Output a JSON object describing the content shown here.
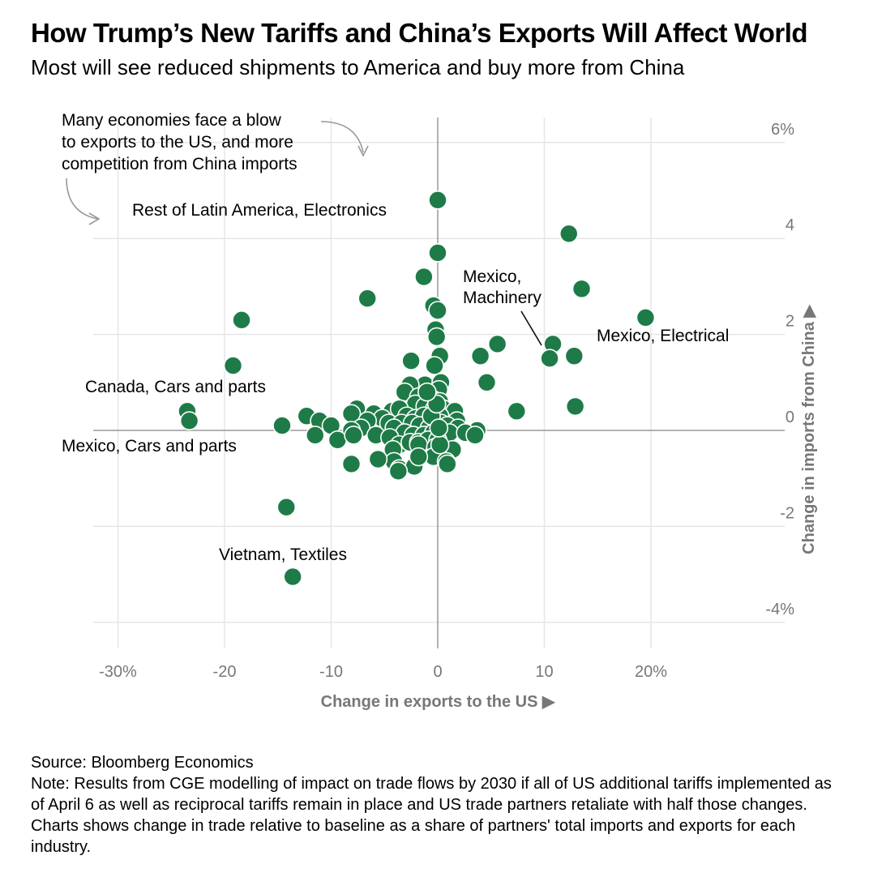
{
  "title": "How Trump’s New Tariffs and China’s Exports Will Affect World",
  "subtitle": "Most will see reduced shipments to America and buy more from China",
  "footer": {
    "source": "Source: Bloomberg Economics",
    "note": "Note: Results from CGE modelling of impact on trade flows by 2030 if all of US additional tariffs implemented as of April 6 as well as reciprocal tariffs remain in place and US trade partners retaliate with half those changes. Charts shows change in trade relative to baseline as a share of partners' total imports and exports for each industry."
  },
  "chart_data": {
    "type": "scatter",
    "xlabel": "Change in exports to the US ▶",
    "ylabel": "Change in imports from China ▶",
    "xlim": [
      -33,
      33
    ],
    "ylim": [
      -4.5,
      6.5
    ],
    "grid": true,
    "x_ticks": [
      -30,
      -20,
      -10,
      0,
      10,
      20
    ],
    "x_tick_labels": [
      "-30%",
      "-20",
      "-10",
      "0",
      "10",
      "20%"
    ],
    "y_ticks": [
      6,
      4,
      2,
      0,
      -2,
      -4
    ],
    "y_tick_labels": [
      "6%",
      "4",
      "2",
      "0",
      "-2",
      "-4%"
    ],
    "point_color": "#1e7b47",
    "quadrant_note": [
      "Many economies face a blow",
      "to exports to the US, and more",
      "competition from China imports"
    ],
    "annotations": [
      {
        "lines": [
          "Rest of Latin America, Electronics"
        ],
        "x": 0,
        "y": 4.8
      },
      {
        "lines": [
          "Mexico,",
          "Machinery"
        ],
        "x": 10.5,
        "y": 1.5
      },
      {
        "lines": [
          "Mexico, Electrical"
        ],
        "x": 19.5,
        "y": 2.35
      },
      {
        "lines": [
          "Canada, Cars and parts"
        ],
        "x": -23.5,
        "y": 0.4
      },
      {
        "lines": [
          "Mexico, Cars and parts"
        ],
        "x": -23.3,
        "y": 0.2
      },
      {
        "lines": [
          "Vietnam, Textiles"
        ],
        "x": -13.6,
        "y": -3.05
      }
    ],
    "points": [
      {
        "x": 0,
        "y": 4.8
      },
      {
        "x": 0,
        "y": 3.7
      },
      {
        "x": -1.3,
        "y": 3.2
      },
      {
        "x": -6.6,
        "y": 2.75
      },
      {
        "x": -18.4,
        "y": 2.3
      },
      {
        "x": -19.2,
        "y": 1.35
      },
      {
        "x": -23.5,
        "y": 0.4
      },
      {
        "x": -23.3,
        "y": 0.2
      },
      {
        "x": -14.6,
        "y": 0.1
      },
      {
        "x": -14.2,
        "y": -1.6
      },
      {
        "x": -13.6,
        "y": -3.05
      },
      {
        "x": 12.3,
        "y": 4.1
      },
      {
        "x": 13.5,
        "y": 2.95
      },
      {
        "x": 19.5,
        "y": 2.35
      },
      {
        "x": 10.8,
        "y": 1.8
      },
      {
        "x": 10.5,
        "y": 1.5
      },
      {
        "x": 12.8,
        "y": 1.55
      },
      {
        "x": 12.9,
        "y": 0.5
      },
      {
        "x": 7.4,
        "y": 0.4
      },
      {
        "x": 5.6,
        "y": 1.8
      },
      {
        "x": 4,
        "y": 1.55
      },
      {
        "x": 4.6,
        "y": 1.0
      },
      {
        "x": 3.7,
        "y": 0
      },
      {
        "x": -0.4,
        "y": 2.6
      },
      {
        "x": 0,
        "y": 2.5
      },
      {
        "x": -0.2,
        "y": 2.1
      },
      {
        "x": -0.1,
        "y": 1.95
      },
      {
        "x": 0.2,
        "y": 1.55
      },
      {
        "x": -0.3,
        "y": 1.35
      },
      {
        "x": -2.5,
        "y": 1.45
      },
      {
        "x": -1.2,
        "y": 0.95
      },
      {
        "x": -2.6,
        "y": 0.95
      },
      {
        "x": 0.3,
        "y": 1.0
      },
      {
        "x": 0.1,
        "y": 0.85
      },
      {
        "x": -3.1,
        "y": 0.8
      },
      {
        "x": -1.8,
        "y": 0.7
      },
      {
        "x": -0.5,
        "y": 0.65
      },
      {
        "x": 0.2,
        "y": 0.6
      },
      {
        "x": -2.1,
        "y": 0.55
      },
      {
        "x": -1.2,
        "y": 0.5
      },
      {
        "x": -0.3,
        "y": 0.45
      },
      {
        "x": 0.5,
        "y": 0.45
      },
      {
        "x": 1.6,
        "y": 0.4
      },
      {
        "x": -4.3,
        "y": 0.4
      },
      {
        "x": -3.6,
        "y": 0.45
      },
      {
        "x": -2.9,
        "y": 0.3
      },
      {
        "x": -2.1,
        "y": 0.25
      },
      {
        "x": -1.3,
        "y": 0.3
      },
      {
        "x": -0.6,
        "y": 0.2
      },
      {
        "x": 0.2,
        "y": 0.3
      },
      {
        "x": 1.8,
        "y": 0.2
      },
      {
        "x": -7.6,
        "y": 0.45
      },
      {
        "x": -8.1,
        "y": 0.35
      },
      {
        "x": -6,
        "y": 0.35
      },
      {
        "x": -5.2,
        "y": 0.25
      },
      {
        "x": -4.6,
        "y": 0.15
      },
      {
        "x": -3.4,
        "y": 0.15
      },
      {
        "x": -2.4,
        "y": 0.15
      },
      {
        "x": -1.7,
        "y": 0.1
      },
      {
        "x": -0.8,
        "y": 0.05
      },
      {
        "x": 0.3,
        "y": 0.15
      },
      {
        "x": 0.9,
        "y": 0.1
      },
      {
        "x": 1.9,
        "y": 0.05
      },
      {
        "x": -12.3,
        "y": 0.3
      },
      {
        "x": -11.1,
        "y": 0.2
      },
      {
        "x": -10,
        "y": 0.1
      },
      {
        "x": -6.6,
        "y": 0.2
      },
      {
        "x": -7.2,
        "y": 0.05
      },
      {
        "x": -8.1,
        "y": 0
      },
      {
        "x": -4.1,
        "y": 0.05
      },
      {
        "x": -3.1,
        "y": -0.05
      },
      {
        "x": -2.3,
        "y": -0.1
      },
      {
        "x": -1.3,
        "y": -0.1
      },
      {
        "x": -0.4,
        "y": -0.05
      },
      {
        "x": 0.1,
        "y": -0.05
      },
      {
        "x": 1.1,
        "y": -0.05
      },
      {
        "x": 2.6,
        "y": -0.05
      },
      {
        "x": 3.5,
        "y": -0.1
      },
      {
        "x": -11.5,
        "y": -0.1
      },
      {
        "x": -9.4,
        "y": -0.2
      },
      {
        "x": -7.9,
        "y": -0.1
      },
      {
        "x": -5.8,
        "y": -0.1
      },
      {
        "x": -4.5,
        "y": -0.15
      },
      {
        "x": -3.6,
        "y": -0.3
      },
      {
        "x": -2.6,
        "y": -0.25
      },
      {
        "x": -1.8,
        "y": -0.25
      },
      {
        "x": -0.9,
        "y": -0.2
      },
      {
        "x": 0,
        "y": -0.2
      },
      {
        "x": -4.2,
        "y": -0.4
      },
      {
        "x": -1.8,
        "y": -0.3
      },
      {
        "x": -0.2,
        "y": -0.35
      },
      {
        "x": 1.4,
        "y": -0.4
      },
      {
        "x": -4.1,
        "y": -0.65
      },
      {
        "x": -1.9,
        "y": -0.6
      },
      {
        "x": -0.4,
        "y": -0.55
      },
      {
        "x": 0.8,
        "y": -0.65
      },
      {
        "x": -5.6,
        "y": -0.6
      },
      {
        "x": -3.6,
        "y": -0.8
      },
      {
        "x": -2.2,
        "y": -0.75
      },
      {
        "x": -8.1,
        "y": -0.7
      },
      {
        "x": -3.7,
        "y": -0.85
      },
      {
        "x": -1.8,
        "y": -0.55
      },
      {
        "x": 0.9,
        "y": -0.7
      },
      {
        "x": 0.2,
        "y": -0.3
      },
      {
        "x": -0.6,
        "y": 0.3
      },
      {
        "x": -0.1,
        "y": 0.55
      },
      {
        "x": 0.1,
        "y": 0.05
      },
      {
        "x": -1.0,
        "y": 0.8
      }
    ]
  }
}
